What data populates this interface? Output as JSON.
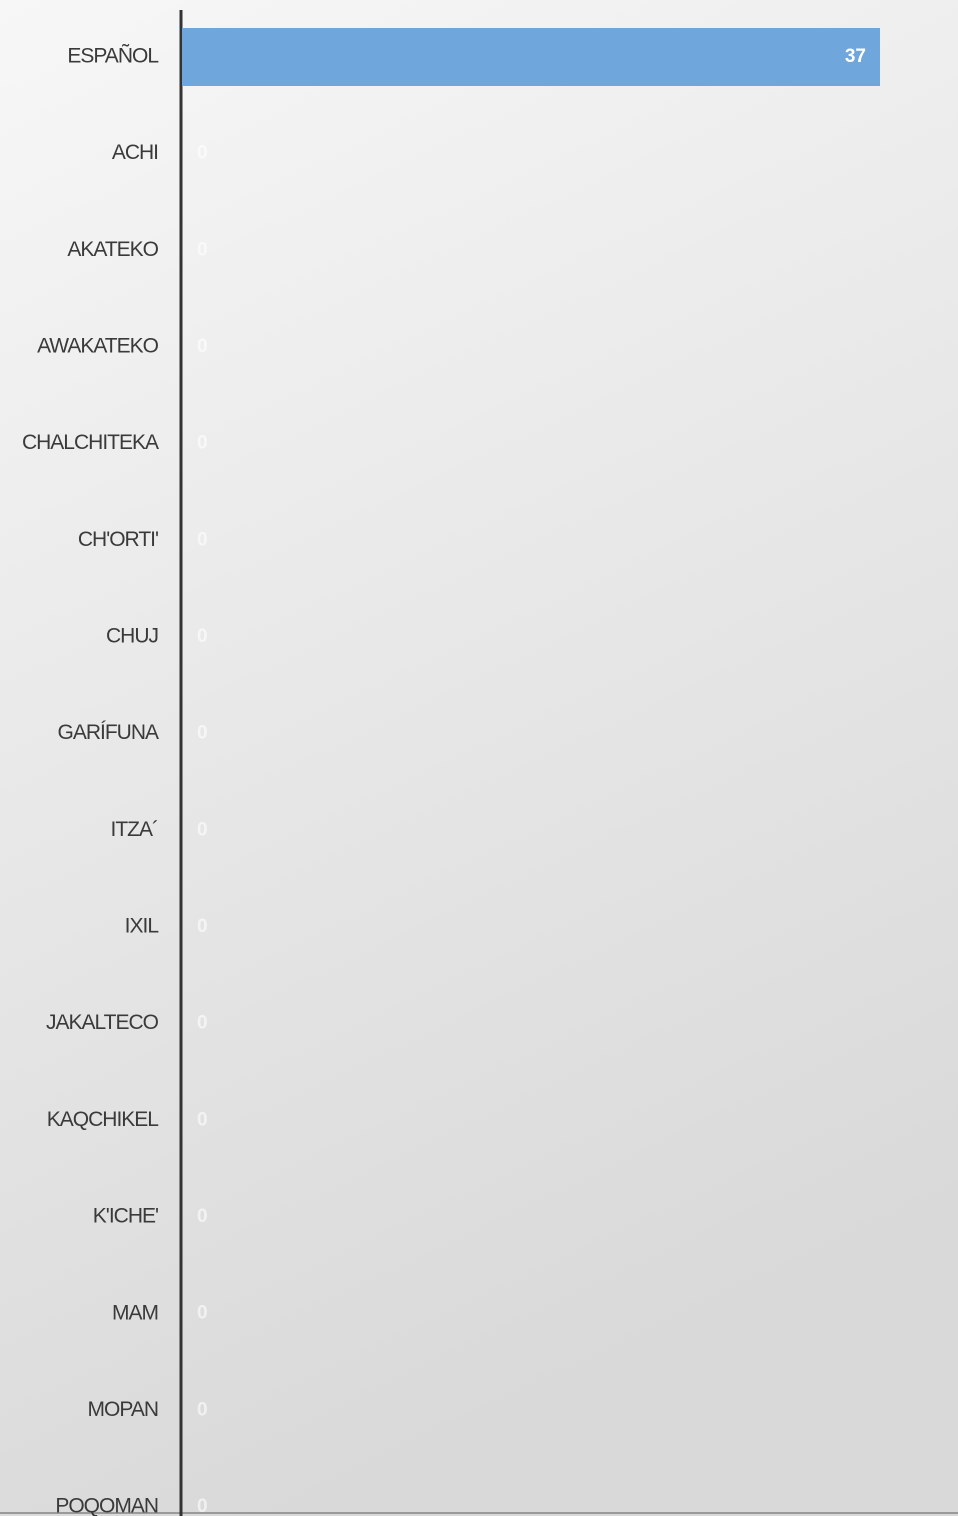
{
  "chart_data": {
    "type": "bar",
    "orientation": "horizontal",
    "color": "#6fa6dc",
    "categories": [
      "ESPAÑOL",
      "ACHI",
      "AKATEKO",
      "AWAKATEKO",
      "CHALCHITEKA",
      "CH'ORTI'",
      "CHUJ",
      "GARÍFUNA",
      "ITZA´",
      "IXIL",
      "JAKALTECO",
      "KAQCHIKEL",
      "K'ICHE'",
      "MAM",
      "MOPAN",
      "POQOMAN"
    ],
    "values": [
      37,
      0,
      0,
      0,
      0,
      0,
      0,
      0,
      0,
      0,
      0,
      0,
      0,
      0,
      0,
      0
    ]
  }
}
